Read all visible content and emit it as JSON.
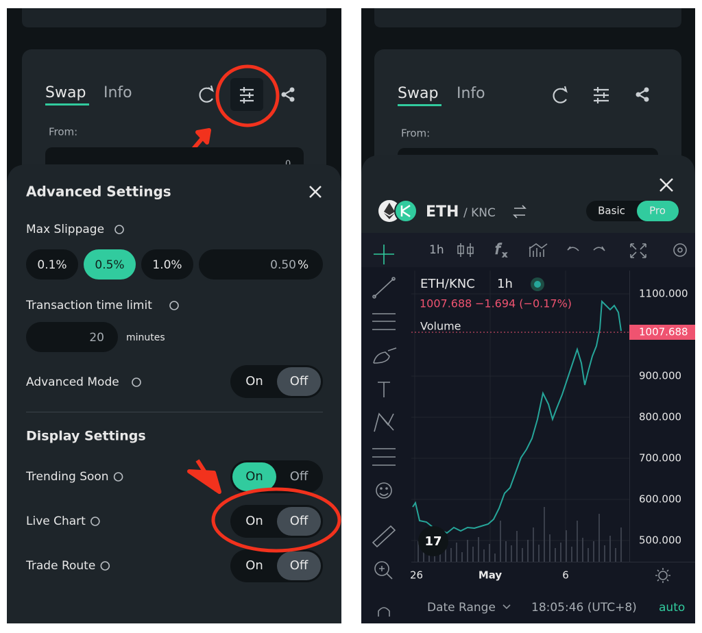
{
  "left_screen": {
    "swap_card": {
      "tabs": [
        "Swap",
        "Info"
      ],
      "from_label": "From:",
      "balance": "0"
    },
    "settings": {
      "title": "Advanced Settings",
      "max_slippage_label": "Max Slippage",
      "slippage_options": [
        "0.1%",
        "0.5%",
        "1.0%"
      ],
      "custom_slippage": "0.50",
      "custom_unit": "%",
      "time_limit_label": "Transaction time limit",
      "time_limit_value": "20",
      "time_limit_unit": "minutes",
      "advanced_mode": {
        "label": "Advanced Mode",
        "on": "On",
        "off": "Off"
      },
      "display_title": "Display Settings",
      "toggles": [
        {
          "label": "Trending Soon",
          "on": "On",
          "off": "Off"
        },
        {
          "label": "Live Chart",
          "on": "On",
          "off": "Off"
        },
        {
          "label": "Trade Route",
          "on": "On",
          "off": "Off"
        }
      ]
    }
  },
  "right_screen": {
    "swap_card": {
      "tabs": [
        "Swap",
        "Info"
      ],
      "from_label": "From:"
    },
    "chart_modal": {
      "pair_base": "ETH",
      "pair_quote": "/ KNC",
      "mode_toggle": [
        "Basic",
        "Pro"
      ],
      "interval": "1h",
      "legend_symbol": "ETH/KNC",
      "legend_interval": "1h",
      "legend_price": "1007.688",
      "legend_change": "−1.694 (−0.17%)",
      "volume_label": "Volume",
      "price_axis": [
        "1100.000",
        "900.000",
        "800.000",
        "700.000",
        "600.000",
        "500.000"
      ],
      "current_price": "1007.688",
      "time_axis": [
        "26",
        "May",
        "6"
      ],
      "date_range": "Date Range",
      "time": "18:05:46 (UTC+8)",
      "scale": "auto"
    }
  }
}
